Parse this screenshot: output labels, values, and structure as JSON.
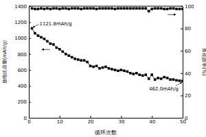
{
  "chart_data": {
    "type": "line",
    "x_label": "循环次数",
    "y_label": "放电比容量(mAh/g)",
    "y2_label": "库伦效率(%)",
    "x": [
      1,
      2,
      3,
      4,
      5,
      6,
      7,
      8,
      9,
      10,
      11,
      12,
      13,
      14,
      15,
      16,
      17,
      18,
      19,
      20,
      21,
      22,
      23,
      24,
      25,
      26,
      27,
      28,
      29,
      30,
      31,
      32,
      33,
      34,
      35,
      36,
      37,
      38,
      39,
      40,
      41,
      42,
      43,
      44,
      45,
      46,
      47,
      48,
      49,
      50
    ],
    "series": [
      {
        "color": "#000000",
        "marker": "square",
        "line_style": "solid",
        "values": [
          1121.8,
          1060,
          1030,
          1010,
          990,
          960,
          930,
          920,
          880,
          860,
          830,
          800,
          780,
          760,
          740,
          730,
          720,
          720,
          700,
          650,
          640,
          650,
          620,
          630,
          640,
          620,
          610,
          600,
          590,
          600,
          590,
          580,
          560,
          550,
          560,
          540,
          530,
          540,
          490,
          540,
          480,
          500,
          490,
          510,
          500,
          480,
          480,
          470,
          465,
          462.0
        ]
      },
      {
        "color": "#000000",
        "marker": "square",
        "line_style": "solid",
        "axis": "y2",
        "values": [
          98,
          97.5,
          97.5,
          98,
          97.5,
          98,
          97.5,
          98,
          98,
          97.5,
          98,
          98,
          97.5,
          98,
          98,
          98,
          97.5,
          98,
          98,
          98,
          98,
          97.5,
          98,
          98,
          98,
          98,
          98,
          97.5,
          98,
          98,
          98,
          98,
          98,
          98,
          98,
          98,
          98,
          98,
          95.5,
          97.5,
          98,
          98,
          98,
          97.5,
          97.5,
          98,
          98,
          97.5,
          97.5,
          97.5
        ]
      }
    ],
    "xlim": [
      0,
      50
    ],
    "xticks": [
      0,
      10,
      20,
      30,
      40,
      50
    ],
    "ylim": [
      0,
      1400
    ],
    "yticks": [
      0,
      200,
      400,
      600,
      800,
      1000,
      1200,
      1400
    ],
    "y2lim": [
      0,
      100
    ],
    "y2ticks": [
      0,
      20,
      40,
      60,
      80,
      100
    ],
    "annotations": [
      {
        "text": "1121.8mAh/g",
        "x": 1,
        "y": 1121.8
      },
      {
        "text": "462.0mAh/g",
        "x": 50,
        "y": 462.0
      }
    ]
  }
}
